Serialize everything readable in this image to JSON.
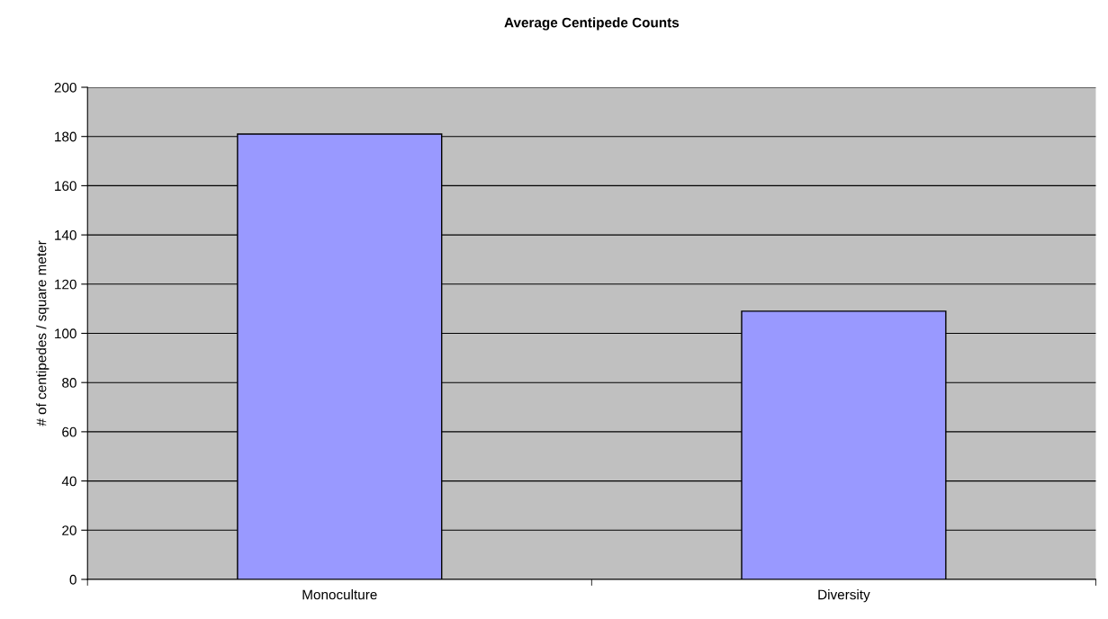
{
  "chart_data": {
    "type": "bar",
    "title": "Average Centipede Counts",
    "ylabel": "# of centipedes / square meter",
    "categories": [
      "Monoculture",
      "Diversity"
    ],
    "values": [
      181,
      109
    ],
    "color": "#9999ff",
    "ylim": [
      0,
      200
    ],
    "yticks": [
      0,
      20,
      40,
      60,
      80,
      100,
      120,
      140,
      160,
      180,
      200
    ],
    "grid": "y",
    "legend": false
  }
}
